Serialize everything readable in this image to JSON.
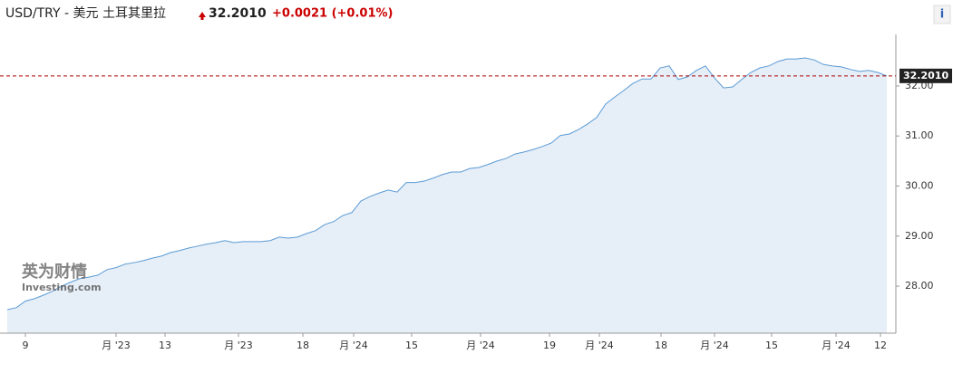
{
  "header": {
    "symbol": "USD/TRY - 美元 土耳其里拉",
    "price": "32.2010",
    "change": "+0.0021 (+0.01%)",
    "info": "i"
  },
  "watermark": {
    "brand": "英为财情",
    "site": "Investing.com"
  },
  "chart_data": {
    "type": "area",
    "color": "#5b9bd5",
    "fill": "#e6eef7",
    "values": [
      27.53,
      27.57,
      27.7,
      27.75,
      27.82,
      27.9,
      28.0,
      28.08,
      28.15,
      28.18,
      28.22,
      28.33,
      28.37,
      28.44,
      28.47,
      28.51,
      28.56,
      28.6,
      28.67,
      28.71,
      28.76,
      28.8,
      28.84,
      28.87,
      28.91,
      28.87,
      28.89,
      28.89,
      28.89,
      28.91,
      28.98,
      28.96,
      28.98,
      29.05,
      29.11,
      29.23,
      29.29,
      29.41,
      29.47,
      29.7,
      29.79,
      29.86,
      29.92,
      29.88,
      30.07,
      30.07,
      30.1,
      30.16,
      30.23,
      30.28,
      30.28,
      30.35,
      30.37,
      30.43,
      30.5,
      30.55,
      30.64,
      30.68,
      30.73,
      30.79,
      30.86,
      31.01,
      31.04,
      31.13,
      31.24,
      31.37,
      31.64,
      31.78,
      31.91,
      32.05,
      32.14,
      32.14,
      32.36,
      32.4,
      32.13,
      32.18,
      32.31,
      32.4,
      32.16,
      31.96,
      31.98,
      32.13,
      32.27,
      32.36,
      32.4,
      32.49,
      32.54,
      32.54,
      32.56,
      32.52,
      32.43,
      32.4,
      32.38,
      32.33,
      32.29,
      32.31,
      32.27,
      32.2
    ],
    "xlim": [
      0,
      97
    ],
    "xticks": [
      {
        "value": 2,
        "label": "9"
      },
      {
        "value": 12,
        "label": "月 '23"
      },
      {
        "value": 17.4,
        "label": "13"
      },
      {
        "value": 25.5,
        "label": "月 '23"
      },
      {
        "value": 32.6,
        "label": "18"
      },
      {
        "value": 38.2,
        "label": "月 '24"
      },
      {
        "value": 44.6,
        "label": "15"
      },
      {
        "value": 52.2,
        "label": "月 '24"
      },
      {
        "value": 59.8,
        "label": "19"
      },
      {
        "value": 65.3,
        "label": "月 '24"
      },
      {
        "value": 72.1,
        "label": "18"
      },
      {
        "value": 78,
        "label": "月 '24"
      },
      {
        "value": 84.3,
        "label": "15"
      },
      {
        "value": 91.4,
        "label": "月 '24"
      },
      {
        "value": 96.3,
        "label": "12"
      }
    ],
    "ylim": [
      27.06,
      33.03
    ],
    "yticks": [
      {
        "value": 28,
        "label": "28.00"
      },
      {
        "value": 29,
        "label": "29.00"
      },
      {
        "value": 30,
        "label": "30.00"
      },
      {
        "value": 31,
        "label": "31.00"
      },
      {
        "value": 32,
        "label": "32.00"
      }
    ],
    "last_price": {
      "value": 32.201,
      "label": "32.2010"
    }
  }
}
